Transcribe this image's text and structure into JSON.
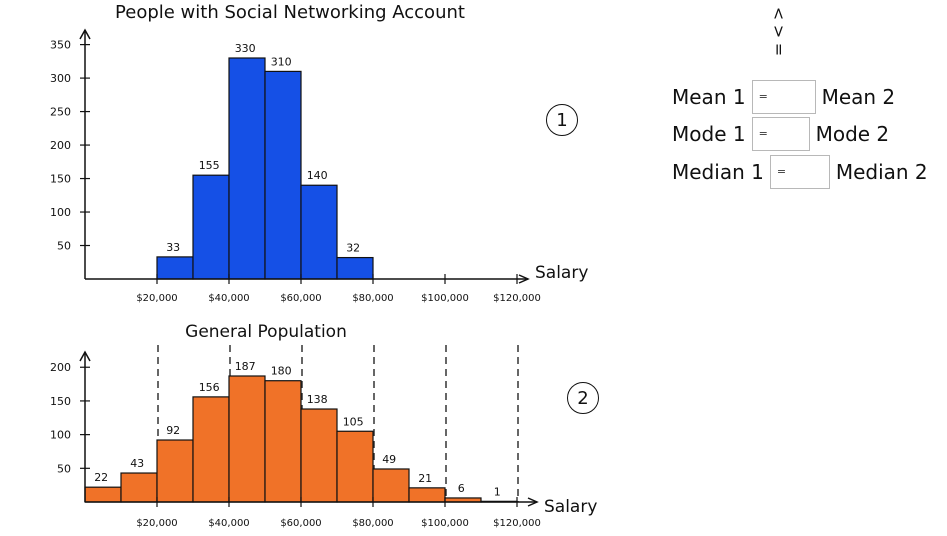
{
  "chart_data": [
    {
      "type": "bar",
      "title": "People with Social Networking Account",
      "xlabel": "Salary",
      "ylabel": "",
      "ylim": [
        0,
        350
      ],
      "yticks": [
        "50",
        "100",
        "150",
        "200",
        "250",
        "300",
        "350"
      ],
      "xticks": [
        "$20,000",
        "$40,000",
        "$60,000",
        "$80,000",
        "$100,000",
        "$120,000"
      ],
      "bins": [
        {
          "from": 20000,
          "to": 30000,
          "value": 33
        },
        {
          "from": 30000,
          "to": 40000,
          "value": 155
        },
        {
          "from": 40000,
          "to": 50000,
          "value": 330
        },
        {
          "from": 50000,
          "to": 60000,
          "value": 310
        },
        {
          "from": 60000,
          "to": 70000,
          "value": 140
        },
        {
          "from": 70000,
          "to": 80000,
          "value": 32
        }
      ],
      "value_labels": [
        "33",
        "155",
        "330",
        "310",
        "140",
        "32"
      ],
      "color": "#1550e6",
      "marker": "1"
    },
    {
      "type": "bar",
      "title": "General Population",
      "xlabel": "Salary",
      "ylabel": "",
      "ylim": [
        0,
        200
      ],
      "yticks": [
        "50",
        "100",
        "150",
        "200"
      ],
      "xticks": [
        "$20,000",
        "$40,000",
        "$60,000",
        "$80,000",
        "$100,000",
        "$120,000"
      ],
      "bins": [
        {
          "from": 0,
          "to": 10000,
          "value": 22
        },
        {
          "from": 10000,
          "to": 20000,
          "value": 43
        },
        {
          "from": 20000,
          "to": 30000,
          "value": 92
        },
        {
          "from": 30000,
          "to": 40000,
          "value": 156
        },
        {
          "from": 40000,
          "to": 50000,
          "value": 187
        },
        {
          "from": 50000,
          "to": 60000,
          "value": 180
        },
        {
          "from": 60000,
          "to": 70000,
          "value": 138
        },
        {
          "from": 70000,
          "to": 80000,
          "value": 105
        },
        {
          "from": 80000,
          "to": 90000,
          "value": 49
        },
        {
          "from": 90000,
          "to": 100000,
          "value": 21
        },
        {
          "from": 100000,
          "to": 110000,
          "value": 6
        },
        {
          "from": 110000,
          "to": 120000,
          "value": 1
        }
      ],
      "value_labels": [
        "22",
        "43",
        "92",
        "156",
        "187",
        "180",
        "138",
        "105",
        "49",
        "21",
        "6",
        "1"
      ],
      "color": "#f07228",
      "marker": "2"
    }
  ],
  "comparison": {
    "symbols": [
      "<",
      ">",
      "="
    ],
    "rows": [
      {
        "left": "Mean 1",
        "box": "=",
        "right": "Mean 2"
      },
      {
        "left": "Mode 1",
        "box": "=",
        "right": "Mode 2"
      },
      {
        "left": "Median 1",
        "box": "=",
        "right": "Median 2"
      }
    ]
  }
}
